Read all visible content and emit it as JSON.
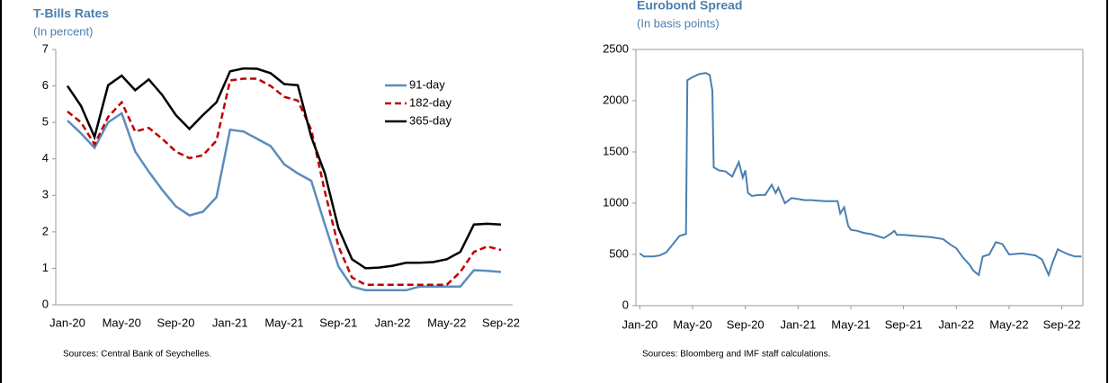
{
  "chart_data": [
    {
      "type": "line",
      "title": "T-Bills Rates",
      "subtitle": "(In percent)",
      "categories": [
        "Jan-20",
        null,
        null,
        null,
        "May-20",
        null,
        null,
        null,
        "Sep-20",
        null,
        null,
        null,
        "Jan-21",
        null,
        null,
        null,
        "May-21",
        null,
        null,
        null,
        "Sep-21",
        null,
        null,
        null,
        "Jan-22",
        null,
        null,
        null,
        "May-22",
        null,
        null,
        null,
        "Sep-22"
      ],
      "series": [
        {
          "name": "91-day",
          "color": "#5b8dbc",
          "dash": false,
          "values": [
            5.05,
            4.7,
            4.3,
            5.0,
            5.25,
            4.2,
            3.65,
            3.15,
            2.7,
            2.45,
            2.55,
            2.95,
            4.8,
            4.75,
            4.55,
            4.35,
            3.85,
            3.6,
            3.4,
            2.2,
            1.05,
            0.5,
            0.4,
            0.4,
            0.4,
            0.4,
            0.5,
            0.5,
            0.5,
            0.5,
            0.95,
            0.93,
            0.9
          ]
        },
        {
          "name": "182-day",
          "color": "#c00000",
          "dash": true,
          "values": [
            5.3,
            5.0,
            4.4,
            5.15,
            5.55,
            4.75,
            4.85,
            4.55,
            4.2,
            4.02,
            4.1,
            4.5,
            6.15,
            6.2,
            6.2,
            6.0,
            5.7,
            5.6,
            4.8,
            3.1,
            1.6,
            0.75,
            0.55,
            0.55,
            0.55,
            0.55,
            0.55,
            0.55,
            0.55,
            0.9,
            1.45,
            1.6,
            1.5
          ]
        },
        {
          "name": "365-day",
          "color": "#000000",
          "dash": false,
          "values": [
            6.0,
            5.45,
            4.6,
            6.02,
            6.28,
            5.88,
            6.18,
            5.75,
            5.2,
            4.82,
            5.2,
            5.55,
            6.4,
            6.48,
            6.47,
            6.35,
            6.05,
            6.02,
            4.6,
            3.6,
            2.1,
            1.25,
            1.0,
            1.02,
            1.07,
            1.15,
            1.15,
            1.17,
            1.25,
            1.45,
            2.2,
            2.22,
            2.2
          ]
        }
      ],
      "ylim": [
        0,
        7
      ],
      "yticks": [
        0,
        1,
        2,
        3,
        4,
        5,
        6,
        7
      ],
      "legend": "upper right",
      "grid": false,
      "note": "Sources: Central Bank of Seychelles."
    },
    {
      "type": "line",
      "title": "Eurobond Spread",
      "subtitle": "(In basis points)",
      "color": "#4a7fb0",
      "x": [
        0,
        0.3,
        1,
        1.5,
        2,
        2.5,
        3,
        3.5,
        3.6,
        4,
        4.5,
        5,
        5.3,
        5.5,
        5.6,
        6,
        6.5,
        7,
        7.5,
        7.8,
        8,
        8.2,
        8.5,
        9,
        9.5,
        10,
        10.3,
        10.5,
        11,
        11.5,
        12,
        12.5,
        13,
        14,
        15,
        15.2,
        15.5,
        15.8,
        16,
        16.5,
        17,
        17.5,
        18,
        18.5,
        19,
        19.3,
        19.5,
        20,
        21,
        22,
        23,
        23.5,
        24,
        24.5,
        25,
        25.3,
        25.7,
        26,
        26.5,
        27,
        27.5,
        28,
        29,
        30,
        30.5,
        31,
        31.3,
        31.7,
        32,
        32.5,
        33,
        33.5
      ],
      "values": [
        510,
        480,
        480,
        490,
        520,
        600,
        680,
        700,
        2200,
        2230,
        2260,
        2270,
        2250,
        2100,
        1350,
        1320,
        1310,
        1260,
        1400,
        1250,
        1320,
        1100,
        1070,
        1080,
        1080,
        1180,
        1100,
        1150,
        1000,
        1050,
        1040,
        1030,
        1030,
        1020,
        1020,
        900,
        960,
        780,
        740,
        730,
        710,
        700,
        680,
        660,
        700,
        730,
        690,
        690,
        680,
        670,
        650,
        600,
        560,
        470,
        400,
        340,
        300,
        480,
        500,
        620,
        600,
        500,
        510,
        490,
        450,
        300,
        420,
        550,
        530,
        500,
        480,
        480
      ],
      "xlim": [
        -0.3,
        33.6
      ],
      "xticks": [
        {
          "value": 0,
          "label": "Jan-20"
        },
        {
          "value": 4,
          "label": "May-20"
        },
        {
          "value": 8,
          "label": "Sep-20"
        },
        {
          "value": 12,
          "label": "Jan-21"
        },
        {
          "value": 16,
          "label": "May-21"
        },
        {
          "value": 20,
          "label": "Sep-21"
        },
        {
          "value": 24,
          "label": "Jan-22"
        },
        {
          "value": 28,
          "label": "May-22"
        },
        {
          "value": 32,
          "label": "Sep-22"
        }
      ],
      "ylim": [
        0,
        2500
      ],
      "yticks": [
        0,
        500,
        1000,
        1500,
        2000,
        2500
      ],
      "grid": false,
      "note": "Sources: Bloomberg and IMF staff calculations."
    }
  ]
}
